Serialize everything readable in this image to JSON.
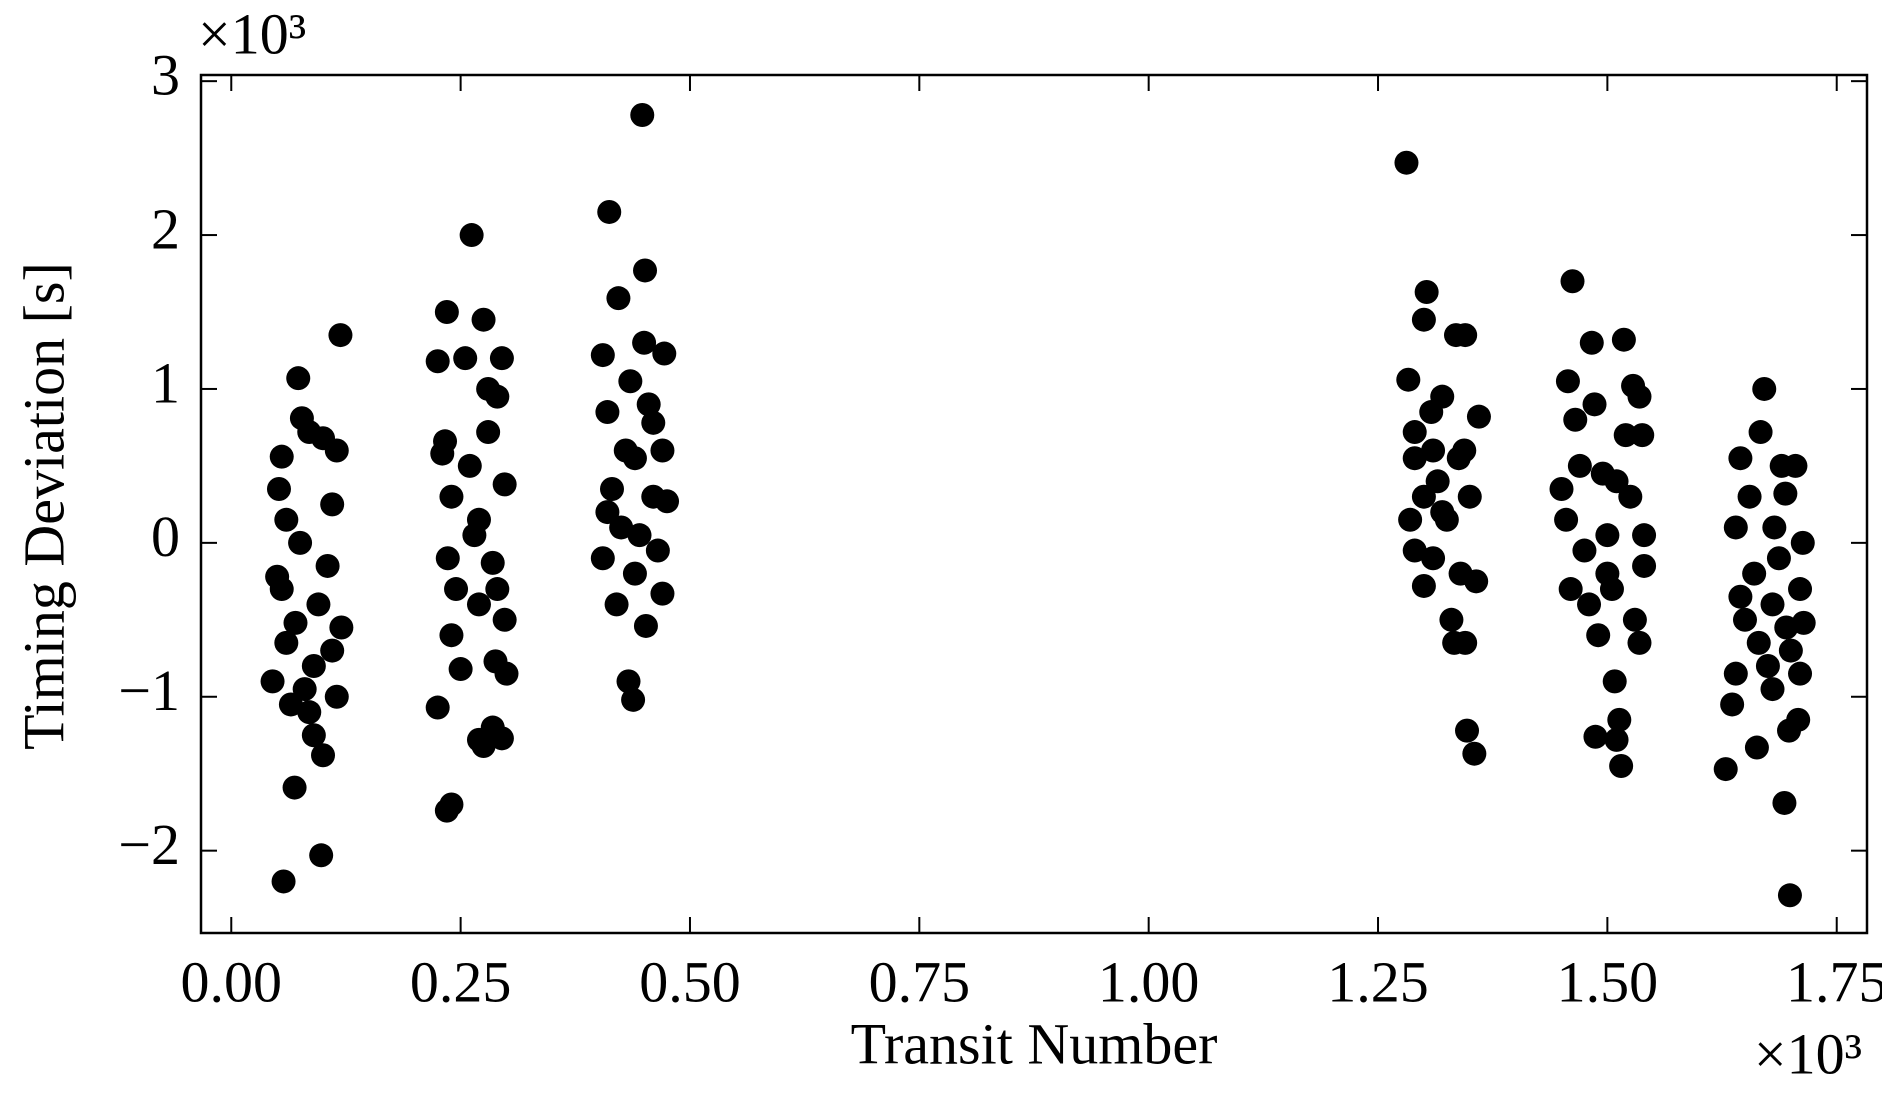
{
  "chart_data": {
    "type": "scatter",
    "xlabel": "Transit Number",
    "ylabel": "Timing Deviation [s]",
    "x_offset_label": "×10³",
    "y_offset_label": "×10³",
    "color": "#000000",
    "xlim": [
      -0.033,
      1.783
    ],
    "ylim": [
      -2.535,
      3.04
    ],
    "xticks": [
      {
        "value": 0,
        "label": "0.00"
      },
      0.25,
      {
        "value": 0.5,
        "label": "0.50"
      },
      0.75,
      {
        "value": 1,
        "label": "1.00"
      },
      1.25,
      {
        "value": 1.5,
        "label": "1.50"
      },
      1.75
    ],
    "yticks": [
      {
        "value": -2,
        "label": "−2"
      },
      {
        "value": -1,
        "label": "−1"
      },
      0,
      1,
      2,
      3
    ],
    "x": [
      0.057,
      0.098,
      0.069,
      0.119,
      0.073,
      0.077,
      0.055,
      0.052,
      0.06,
      0.05,
      0.055,
      0.045,
      0.06,
      0.07,
      0.08,
      0.085,
      0.09,
      0.1,
      0.095,
      0.1,
      0.115,
      0.11,
      0.105,
      0.11,
      0.115,
      0.12,
      0.065,
      0.075,
      0.09,
      0.085,
      0.225,
      0.235,
      0.24,
      0.262,
      0.235,
      0.225,
      0.23,
      0.233,
      0.24,
      0.236,
      0.24,
      0.25,
      0.245,
      0.255,
      0.26,
      0.265,
      0.27,
      0.275,
      0.28,
      0.28,
      0.285,
      0.27,
      0.275,
      0.285,
      0.295,
      0.29,
      0.295,
      0.298,
      0.29,
      0.298,
      0.288,
      0.3,
      0.27,
      0.412,
      0.448,
      0.422,
      0.451,
      0.405,
      0.41,
      0.415,
      0.41,
      0.405,
      0.42,
      0.43,
      0.435,
      0.44,
      0.445,
      0.44,
      0.433,
      0.438,
      0.45,
      0.455,
      0.46,
      0.465,
      0.452,
      0.47,
      0.472,
      0.47,
      0.475,
      0.46,
      0.425,
      1.281,
      1.283,
      1.29,
      1.285,
      1.29,
      1.29,
      1.3,
      1.303,
      1.308,
      1.3,
      1.3,
      1.31,
      1.315,
      1.32,
      1.325,
      1.33,
      1.333,
      1.335,
      1.338,
      1.34,
      1.345,
      1.35,
      1.347,
      1.355,
      1.36,
      1.357,
      1.344,
      1.345,
      1.32,
      1.31,
      1.462,
      1.457,
      1.45,
      1.455,
      1.46,
      1.465,
      1.47,
      1.475,
      1.48,
      1.483,
      1.486,
      1.49,
      1.487,
      1.495,
      1.5,
      1.505,
      1.508,
      1.51,
      1.513,
      1.515,
      1.518,
      1.52,
      1.525,
      1.528,
      1.53,
      1.535,
      1.54,
      1.54,
      1.538,
      1.535,
      1.51,
      1.5,
      1.629,
      1.636,
      1.64,
      1.645,
      1.64,
      1.645,
      1.65,
      1.655,
      1.66,
      1.663,
      1.665,
      1.667,
      1.671,
      1.675,
      1.68,
      1.682,
      1.687,
      1.69,
      1.694,
      1.695,
      1.698,
      1.693,
      1.699,
      1.7,
      1.705,
      1.71,
      1.713,
      1.714,
      1.71,
      1.708,
      1.68
    ],
    "values": [
      -2.2,
      -2.03,
      -1.59,
      1.35,
      1.07,
      0.81,
      0.56,
      0.35,
      0.15,
      -0.22,
      -0.3,
      -0.9,
      -0.65,
      -0.52,
      -0.95,
      -1.1,
      -1.25,
      -1.38,
      -0.4,
      0.68,
      0.6,
      0.25,
      -0.15,
      -0.7,
      -1.0,
      -0.55,
      -1.05,
      0.0,
      -0.8,
      0.72,
      -1.07,
      -1.74,
      -1.7,
      2.0,
      1.5,
      1.18,
      0.58,
      0.66,
      0.3,
      -0.1,
      -0.6,
      -0.82,
      -0.3,
      1.2,
      0.5,
      0.05,
      -0.4,
      1.45,
      1.0,
      0.72,
      -0.13,
      -1.28,
      -1.32,
      -1.2,
      -1.27,
      0.95,
      1.2,
      0.38,
      -0.3,
      -0.5,
      -0.77,
      -0.85,
      0.15,
      2.15,
      2.78,
      1.59,
      1.77,
      1.22,
      0.85,
      0.35,
      0.2,
      -0.1,
      -0.4,
      0.6,
      1.05,
      0.55,
      0.05,
      -0.2,
      -0.9,
      -1.02,
      1.3,
      0.9,
      0.3,
      -0.05,
      -0.54,
      -0.33,
      1.23,
      0.6,
      0.27,
      0.78,
      0.1,
      2.47,
      1.06,
      0.72,
      0.15,
      -0.05,
      0.55,
      1.45,
      1.63,
      0.85,
      0.3,
      -0.28,
      -0.1,
      0.4,
      0.95,
      0.15,
      -0.5,
      -0.65,
      1.35,
      0.55,
      -0.2,
      1.35,
      0.3,
      -1.22,
      -1.37,
      0.82,
      -0.25,
      0.6,
      -0.65,
      0.2,
      0.6,
      1.7,
      1.05,
      0.35,
      0.15,
      -0.3,
      0.8,
      0.5,
      -0.05,
      -0.4,
      1.3,
      0.9,
      -0.6,
      -1.26,
      0.45,
      0.05,
      -0.3,
      -0.9,
      -1.28,
      -1.15,
      -1.45,
      1.32,
      0.7,
      0.3,
      1.02,
      -0.5,
      -0.65,
      0.05,
      -0.15,
      0.7,
      0.95,
      0.4,
      -0.2,
      -1.47,
      -1.05,
      -0.85,
      0.55,
      0.1,
      -0.35,
      -0.5,
      0.3,
      -0.2,
      -1.33,
      -0.65,
      0.72,
      1.0,
      -0.8,
      -0.4,
      0.1,
      -0.1,
      0.5,
      0.32,
      -0.55,
      -1.22,
      -1.69,
      -2.29,
      -0.7,
      0.5,
      -0.85,
      0.0,
      -0.52,
      -0.3,
      -1.15,
      -0.95
    ]
  }
}
